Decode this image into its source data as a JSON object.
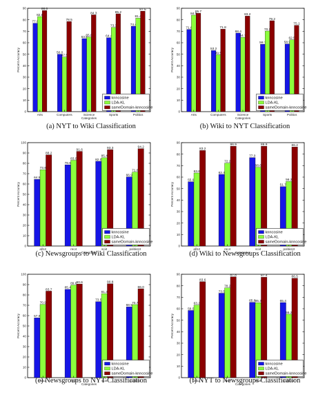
{
  "colors": {
    "knncosine": "#1515e6",
    "LDA-KL": "#8cff3c",
    "sameDomain-knncosine": "#8b0000"
  },
  "chart_data": [
    {
      "type": "bar",
      "caption": "(a) NYT to Wiki Classification",
      "xlabel": "Categories",
      "ylabel": "Percent Accuracy",
      "categories": [
        "Arts",
        "Computers",
        "Science",
        "Sports",
        "Politics"
      ],
      "ylim": [
        0,
        90
      ],
      "yticks": [
        0,
        10,
        20,
        30,
        40,
        50,
        60,
        70,
        80,
        90
      ],
      "legend": "bottom-right",
      "series": [
        {
          "name": "knncosine",
          "values": [
            77.0,
            50.0,
            63.6,
            64.4,
            74.4
          ]
        },
        {
          "name": "LDA-KL",
          "values": [
            82.8,
            47.5,
            65.0,
            73.3,
            81.4
          ]
        },
        {
          "name": "sameDomain-knncosine",
          "values": [
            88.0,
            78.5,
            84.3,
            85.2,
            87.5
          ]
        }
      ]
    },
    {
      "type": "bar",
      "caption": "(b) Wiki to NYT Classification",
      "xlabel": "Categories",
      "ylabel": "Percent Accuracy",
      "categories": [
        "Arts",
        "Computers",
        "Science",
        "Sports",
        "Politics"
      ],
      "ylim": [
        0,
        90
      ],
      "yticks": [
        0,
        10,
        20,
        30,
        40,
        50,
        60,
        70,
        80,
        90
      ],
      "legend": "bottom-right",
      "series": [
        {
          "name": "knncosine",
          "values": [
            71.6,
            53.2,
            68.4,
            58.7,
            58.9
          ]
        },
        {
          "name": "LDA-KL",
          "values": [
            84.0,
            49.5,
            64.7,
            70.2,
            62.5
          ]
        },
        {
          "name": "sameDomain-knncosine",
          "values": [
            85.7,
            71.8,
            83.2,
            79.2,
            75.1
          ]
        }
      ]
    },
    {
      "type": "bar",
      "caption": "(c) Newsgroups to Wiki Classification",
      "xlabel": "Categories",
      "ylabel": "Percent Accuracy",
      "categories": [
        "all12",
        "rec4",
        "sci4",
        "politics3"
      ],
      "ylim": [
        0,
        100
      ],
      "yticks": [
        0,
        10,
        20,
        30,
        40,
        50,
        60,
        70,
        80,
        90,
        100
      ],
      "legend": "bottom-right",
      "series": [
        {
          "name": "knncosine",
          "values": [
            64.5,
            78.6,
            82.0,
            66.9
          ]
        },
        {
          "name": "LDA-KL",
          "values": [
            73.8,
            83.0,
            85.4,
            71.6
          ]
        },
        {
          "name": "sameDomain-knncosine",
          "values": [
            88.2,
            91.6,
            93.3,
            94.2
          ]
        }
      ]
    },
    {
      "type": "bar",
      "caption": "(d) Wiki to Newsgroups Classification",
      "xlabel": "Categories",
      "ylabel": "Percent Accuracy",
      "categories": [
        "all12",
        "rec4",
        "sci4",
        "politics3"
      ],
      "ylim": [
        0,
        90
      ],
      "yticks": [
        0,
        10,
        20,
        30,
        40,
        50,
        60,
        70,
        80,
        90
      ],
      "legend": "bottom-right",
      "series": [
        {
          "name": "knncosine",
          "values": [
            55.9,
            62.4,
            77.0,
            51.7
          ]
        },
        {
          "name": "LDA-KL",
          "values": [
            63.6,
            72.2,
            68.6,
            56.2
          ]
        },
        {
          "name": "sameDomain-knncosine",
          "values": [
            83.2,
            86.9,
            86.9,
            86.2
          ]
        }
      ]
    },
    {
      "type": "bar",
      "caption": "(e) Newsgroups to NYT Classification",
      "xlabel": "Categories",
      "ylabel": "Percent Accuracy",
      "categories": [
        "all12",
        "rec4",
        "sci4",
        "politics3"
      ],
      "ylim": [
        0,
        100
      ],
      "yticks": [
        0,
        10,
        20,
        30,
        40,
        50,
        60,
        70,
        80,
        90,
        100
      ],
      "legend": "bottom-right",
      "series": [
        {
          "name": "knncosine",
          "values": [
            57.9,
            85.4,
            73.5,
            68.5
          ]
        },
        {
          "name": "LDA-KL",
          "values": [
            70.9,
            89.6,
            81.3,
            70.7
          ]
        },
        {
          "name": "sameDomain-knncosine",
          "values": [
            83.7,
            90.6,
            90.8,
            86.0
          ]
        }
      ]
    },
    {
      "type": "bar",
      "caption": "(f) NYT to Newsgroups Classification",
      "xlabel": "Categories",
      "ylabel": "Percent Accuracy",
      "categories": [
        "all12",
        "rec4",
        "sci4",
        "politics3"
      ],
      "ylim": [
        0,
        90
      ],
      "yticks": [
        0,
        10,
        20,
        30,
        40,
        50,
        60,
        70,
        80,
        90
      ],
      "legend": "bottom-right",
      "series": [
        {
          "name": "knncosine",
          "values": [
            58.5,
            73.5,
            65.6,
            65.4
          ]
        },
        {
          "name": "LDA-KL",
          "values": [
            63.2,
            78.2,
            65.3,
            55.2
          ]
        },
        {
          "name": "sameDomain-knncosine",
          "values": [
            83.6,
            87.8,
            87.4,
            86.5
          ]
        }
      ]
    }
  ]
}
